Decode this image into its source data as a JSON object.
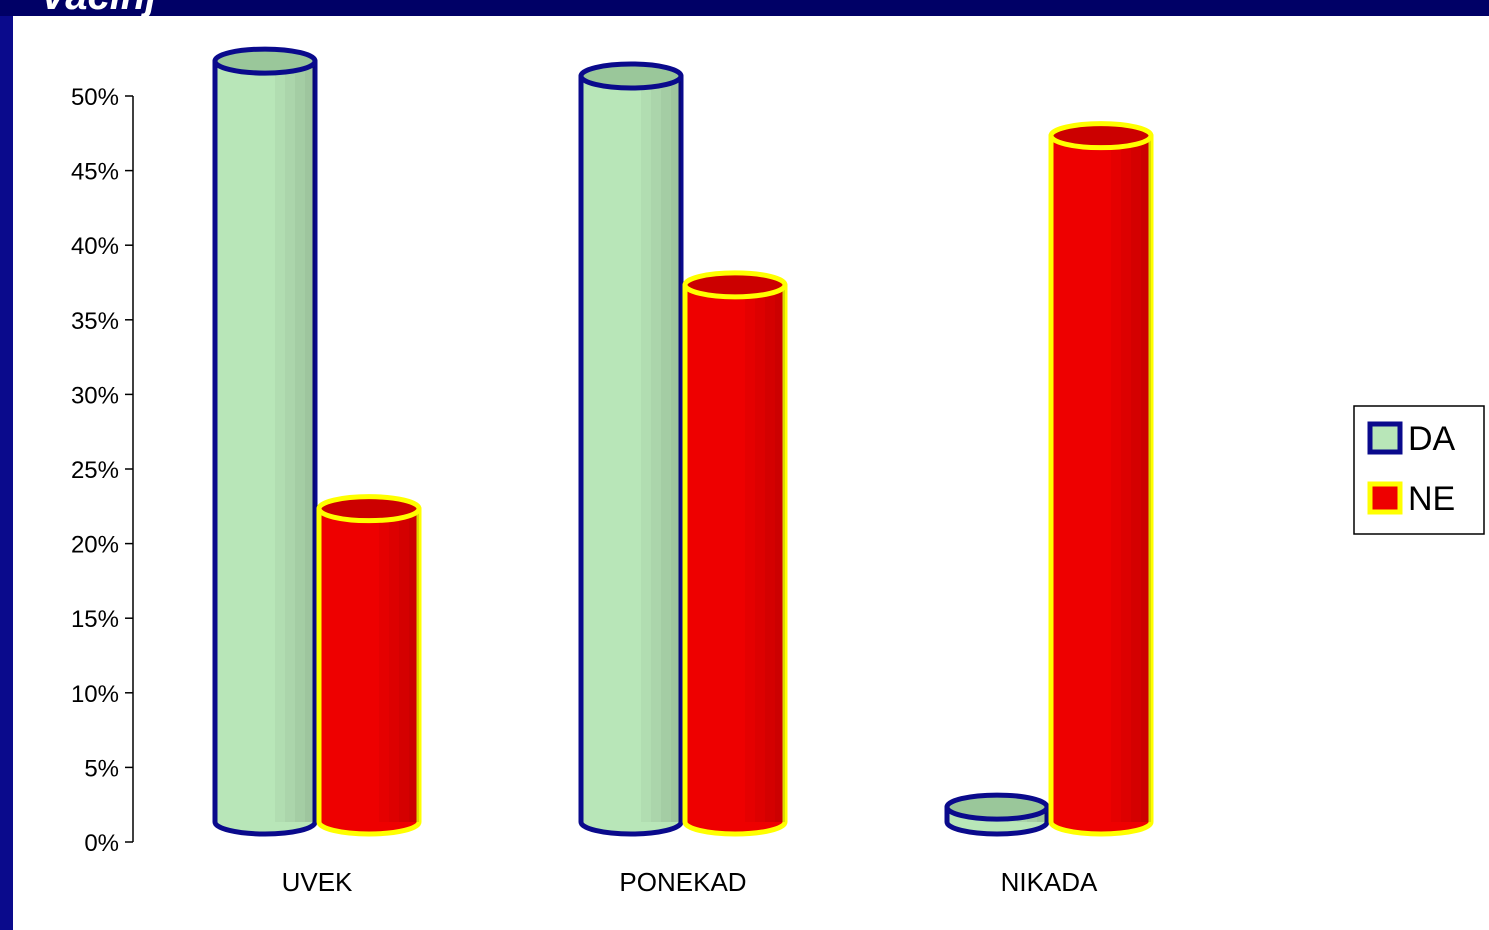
{
  "page": {
    "title_fragment": "Vacinj"
  },
  "chart_data": {
    "type": "bar",
    "style": "3d-cylinder",
    "categories": [
      "UVEK",
      "PONEKAD",
      "NIKADA"
    ],
    "series": [
      {
        "name": "DA",
        "values": [
          51,
          50,
          1
        ],
        "fill": "#b8e6b8",
        "outline": "#0a0a8c",
        "top": "#9ac79a"
      },
      {
        "name": "NE",
        "values": [
          21,
          36,
          46
        ],
        "fill": "#ee0000",
        "outline": "#ffff00",
        "top": "#cc0000"
      }
    ],
    "y_ticks": [
      "0%",
      "5%",
      "10%",
      "15%",
      "20%",
      "25%",
      "30%",
      "35%",
      "40%",
      "45%",
      "50%"
    ],
    "ylim": [
      0,
      50
    ],
    "grid": false,
    "legend_position": "right"
  }
}
